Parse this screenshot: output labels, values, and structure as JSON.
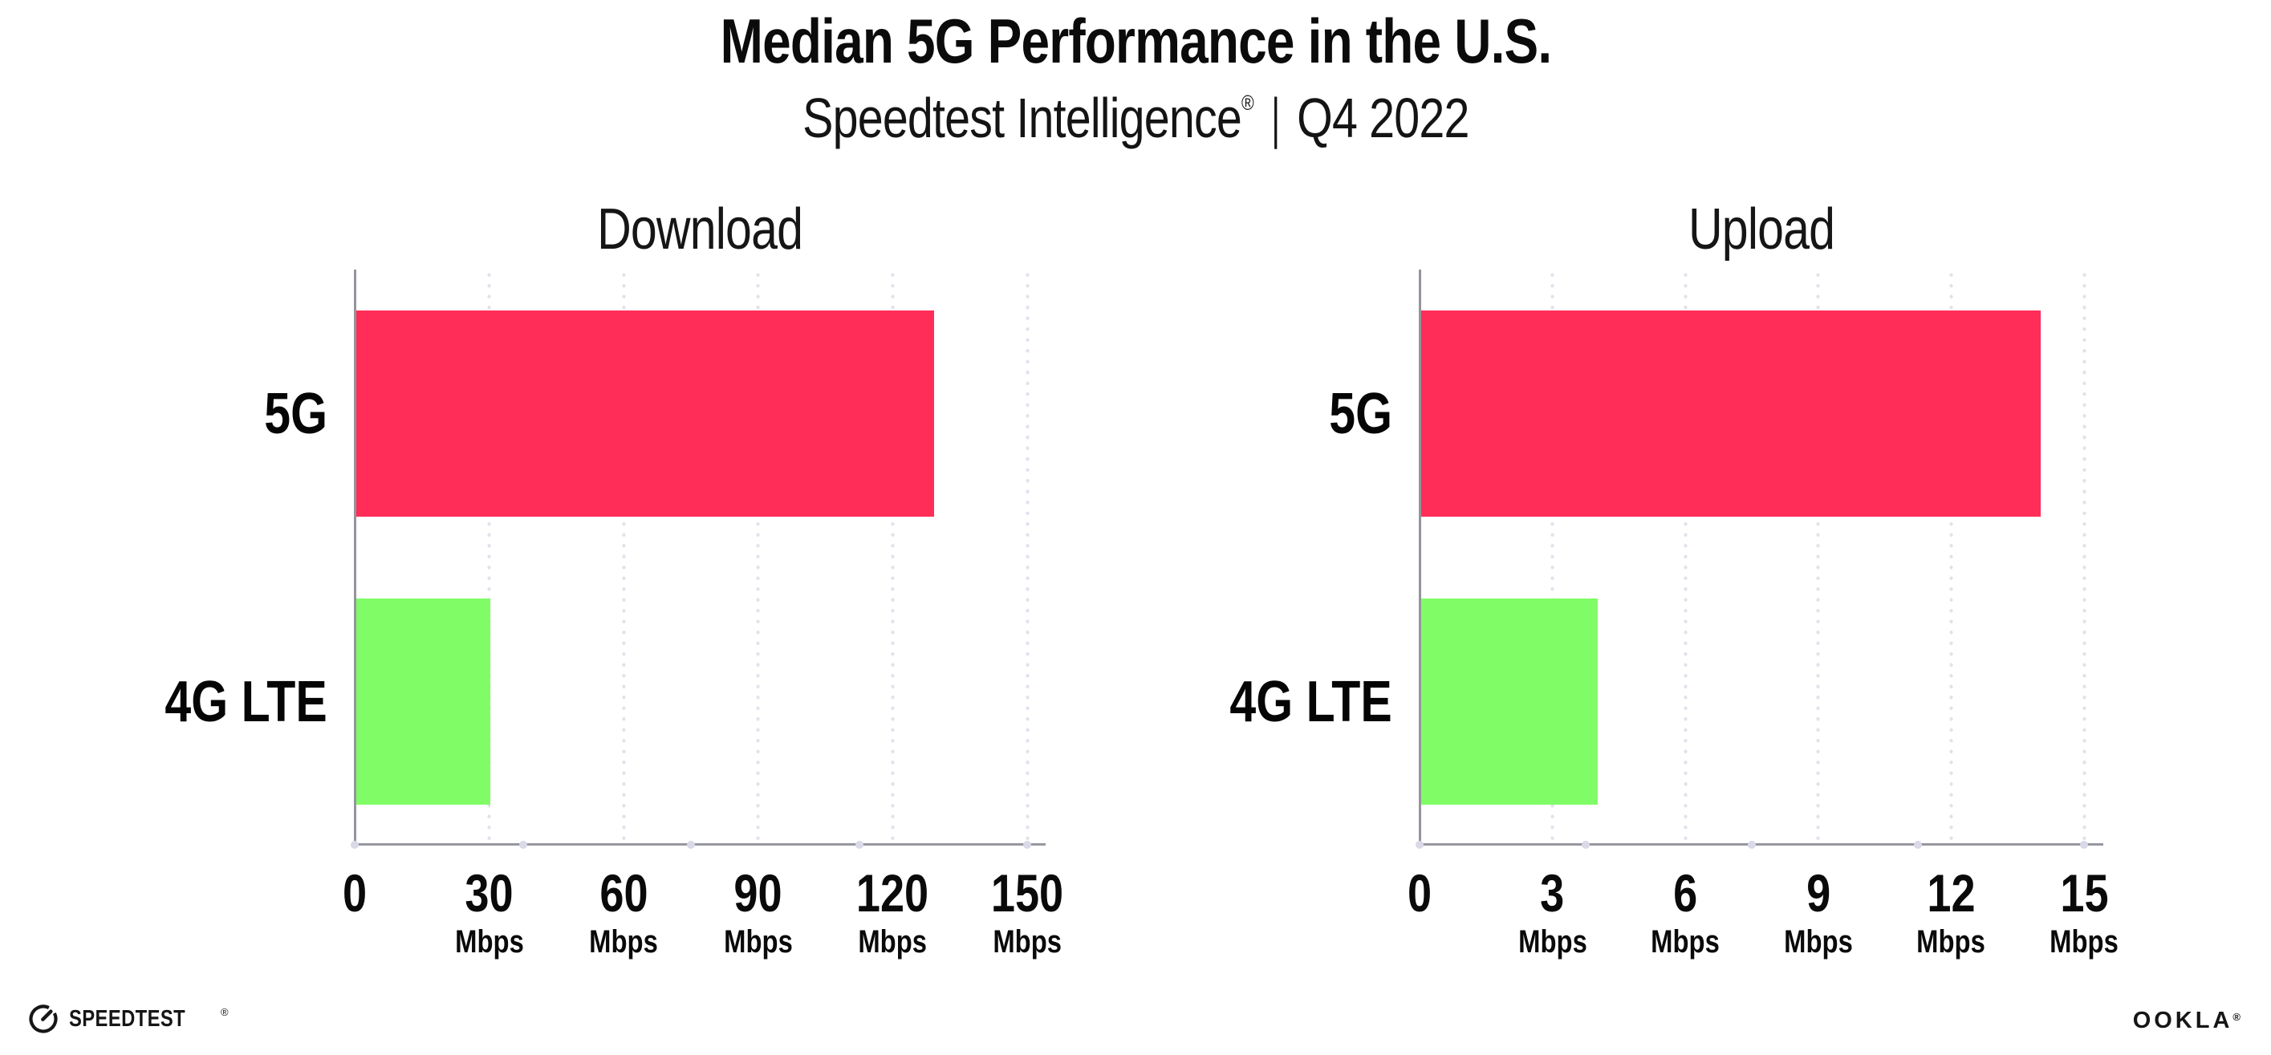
{
  "header": {
    "title": "Median 5G Performance in the U.S.",
    "subtitle": {
      "brand": "Speedtest Intelligence",
      "reg": "®",
      "separator": "|",
      "period": "Q4 2022"
    }
  },
  "chart_data": [
    {
      "type": "bar",
      "orientation": "horizontal",
      "title": "Download",
      "categories": [
        "5G",
        "4G LTE"
      ],
      "values": [
        129,
        30
      ],
      "unit": "Mbps",
      "xlim": [
        0,
        150
      ],
      "grid": "dotted-vertical",
      "legend": "none",
      "bar_colors": [
        "#FF2D58",
        "#80FC66"
      ],
      "ticks": [
        {
          "value": 0,
          "label": "0",
          "unit": ""
        },
        {
          "value": 30,
          "label": "30",
          "unit": "Mbps"
        },
        {
          "value": 60,
          "label": "60",
          "unit": "Mbps"
        },
        {
          "value": 90,
          "label": "90",
          "unit": "Mbps"
        },
        {
          "value": 120,
          "label": "120",
          "unit": "Mbps"
        },
        {
          "value": 150,
          "label": "150",
          "unit": "Mbps"
        }
      ]
    },
    {
      "type": "bar",
      "orientation": "horizontal",
      "title": "Upload",
      "categories": [
        "5G",
        "4G LTE"
      ],
      "values": [
        14,
        4
      ],
      "unit": "Mbps",
      "xlim": [
        0,
        15
      ],
      "grid": "dotted-vertical",
      "legend": "none",
      "bar_colors": [
        "#FF2D58",
        "#80FC66"
      ],
      "ticks": [
        {
          "value": 0,
          "label": "0",
          "unit": ""
        },
        {
          "value": 3,
          "label": "3",
          "unit": "Mbps"
        },
        {
          "value": 6,
          "label": "6",
          "unit": "Mbps"
        },
        {
          "value": 9,
          "label": "9",
          "unit": "Mbps"
        },
        {
          "value": 12,
          "label": "12",
          "unit": "Mbps"
        },
        {
          "value": 15,
          "label": "15",
          "unit": "Mbps"
        }
      ]
    }
  ],
  "colors": {
    "bar_5g": "#FF2D58",
    "bar_4g_lte": "#80FC66",
    "axis_line": "#97979F",
    "grid_dot": "#E2E2EE",
    "background": "#FFFFFF",
    "text": "#111111"
  },
  "footer": {
    "speedtest": "SPEEDTEST",
    "speedtest_mark": "®",
    "ookla": "OOKLA",
    "ookla_mark": "®"
  }
}
